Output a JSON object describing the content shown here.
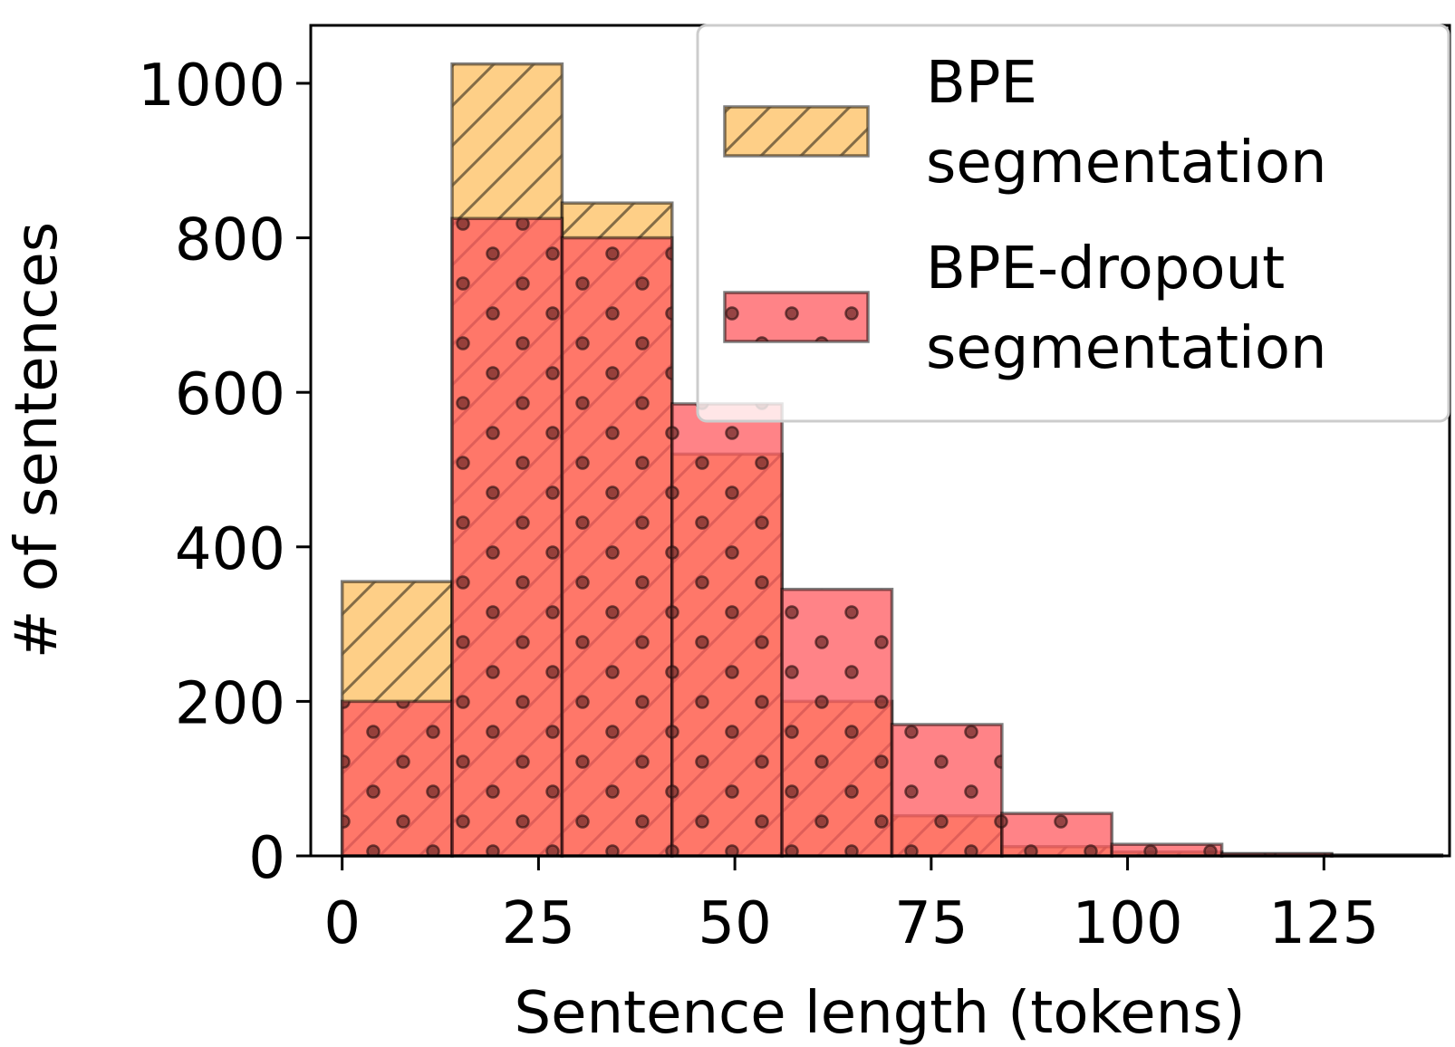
{
  "chart_data": {
    "type": "bar",
    "subtype": "histogram-overlay",
    "title": "",
    "xlabel": "Sentence length (tokens)",
    "ylabel": "# of sentences",
    "xlim": [
      -4,
      141
    ],
    "ylim": [
      0,
      1075
    ],
    "xticks": [
      0,
      25,
      50,
      75,
      100,
      125
    ],
    "yticks": [
      0,
      200,
      400,
      600,
      800,
      1000
    ],
    "grid": false,
    "legend_position": "top-right",
    "series": [
      {
        "name": "BPE segmentation",
        "legend_lines": [
          "BPE",
          "segmentation"
        ],
        "color": "#fdbf5f",
        "hatch": "diagonal",
        "bin_edges": [
          0,
          14,
          28,
          42,
          56,
          70,
          84,
          98,
          112,
          126,
          140
        ],
        "values": [
          355,
          1025,
          845,
          520,
          200,
          52,
          12,
          5,
          2,
          1
        ]
      },
      {
        "name": "BPE-dropout segmentation",
        "legend_lines": [
          "BPE-dropout",
          "segmentation"
        ],
        "color": "#ff5a5f",
        "hatch": "dots",
        "bin_edges": [
          0,
          14,
          28,
          42,
          56,
          70,
          84,
          98,
          112,
          126,
          140
        ],
        "values": [
          200,
          825,
          800,
          585,
          345,
          170,
          55,
          15,
          3,
          1
        ]
      }
    ]
  }
}
